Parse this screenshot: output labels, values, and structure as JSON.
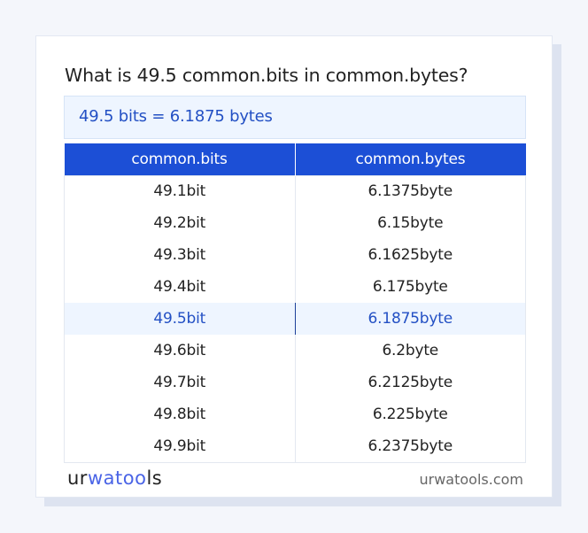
{
  "title": "What is 49.5 common.bits in common.bytes?",
  "result": "49.5 bits = 6.1875 bytes",
  "table": {
    "headers": [
      "common.bits",
      "common.bytes"
    ],
    "rows": [
      [
        "49.1bit",
        "6.1375byte"
      ],
      [
        "49.2bit",
        "6.15byte"
      ],
      [
        "49.3bit",
        "6.1625byte"
      ],
      [
        "49.4bit",
        "6.175byte"
      ],
      [
        "49.5bit",
        "6.1875byte"
      ],
      [
        "49.6bit",
        "6.2byte"
      ],
      [
        "49.7bit",
        "6.2125byte"
      ],
      [
        "49.8bit",
        "6.225byte"
      ],
      [
        "49.9bit",
        "6.2375byte"
      ]
    ],
    "highlighted_row": 4
  },
  "footer": {
    "logo": "urwatools",
    "logo_parts": [
      "ur",
      "wat",
      "oo",
      "ls"
    ],
    "site": "urwatools.com"
  },
  "colors": {
    "accent": "#1c4fd6",
    "highlight_bg": "#eef5ff",
    "highlight_text": "#2350c4"
  }
}
